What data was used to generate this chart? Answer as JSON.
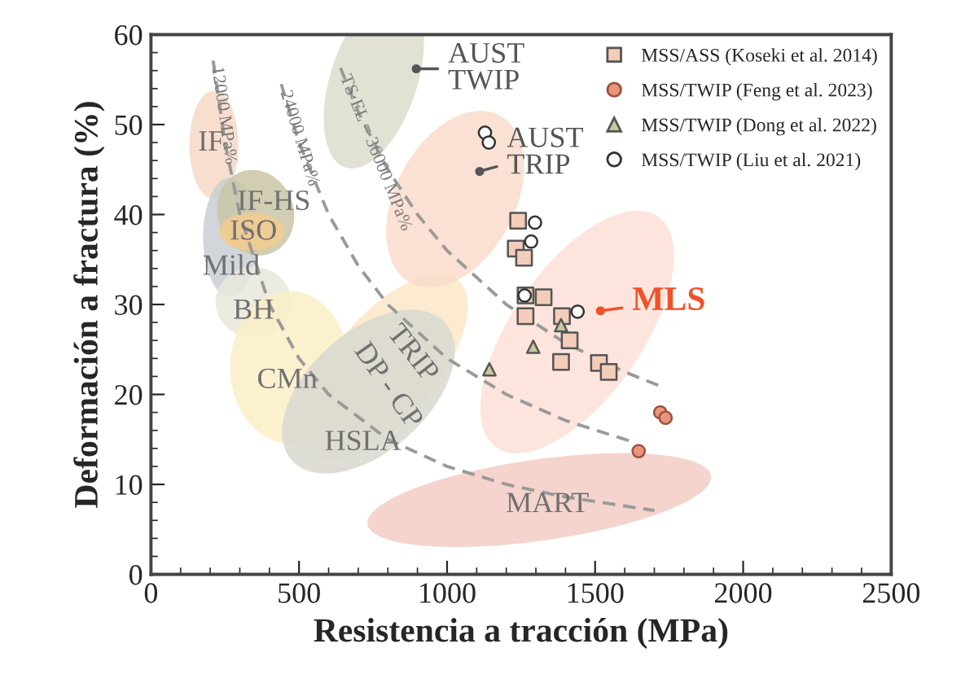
{
  "chart_data": {
    "type": "scatter",
    "xlabel": "Resistencia a tracción (MPa)",
    "ylabel": "Deformación a fractura (%)",
    "xlim": [
      0,
      2500
    ],
    "ylim": [
      0,
      60
    ],
    "xticks": [
      0,
      500,
      1000,
      1500,
      2000,
      2500
    ],
    "yticks": [
      0,
      10,
      20,
      30,
      40,
      50,
      60
    ],
    "grid": false,
    "legend": "top right",
    "series": [
      {
        "name": "MSS/ASS (Koseki et al. 2014)",
        "marker": "square",
        "color": "#f3cdb9",
        "x": [
          1240,
          1232,
          1260,
          1265,
          1326,
          1265,
          1388,
          1414,
          1385,
          1513,
          1546
        ],
        "values": [
          39.3,
          36.2,
          35.2,
          31.0,
          30.8,
          28.7,
          28.7,
          26.0,
          23.6,
          23.5,
          22.5
        ]
      },
      {
        "name": "MSS/TWIP (Feng et al. 2023)",
        "marker": "circle",
        "color": "#e8957a",
        "x": [
          1720,
          1738,
          1647
        ],
        "values": [
          18.0,
          17.4,
          13.7
        ]
      },
      {
        "name": "MSS/TWIP (Dong et al. 2022)",
        "marker": "triangle",
        "color": "#c8c8a0",
        "x": [
          1385,
          1291,
          1143
        ],
        "values": [
          27.7,
          25.3,
          22.8
        ]
      },
      {
        "name": "MSS/TWIP (Liu et al. 2021)",
        "marker": "circle",
        "color": "#ffffff",
        "x": [
          1128,
          1141,
          1297,
          1284,
          1262,
          1441
        ],
        "values": [
          49.1,
          48.0,
          39.1,
          37.0,
          31.0,
          29.2
        ]
      },
      {
        "name": "12000 MPa%",
        "type": "line",
        "line_style": "dashed",
        "marker": "none",
        "color": "#9a9a9a",
        "x": [
          210,
          250,
          300,
          400,
          500,
          600,
          800,
          1000,
          1200,
          1400,
          1700
        ],
        "values": [
          57.1,
          48.0,
          40.0,
          30.0,
          24.0,
          20.0,
          15.0,
          12.0,
          10.0,
          8.6,
          7.1
        ]
      },
      {
        "name": "24000 MPa%",
        "type": "line",
        "line_style": "dashed",
        "marker": "none",
        "color": "#9a9a9a",
        "x": [
          440,
          500,
          600,
          700,
          800,
          1000,
          1200,
          1400,
          1630
        ],
        "values": [
          54.5,
          48.0,
          40.0,
          34.3,
          30.0,
          24.0,
          20.0,
          17.1,
          14.7
        ]
      },
      {
        "name": "TS·EL = 36000 MPa%",
        "type": "line",
        "line_style": "dashed",
        "marker": "none",
        "color": "#9a9a9a",
        "x": [
          640,
          700,
          800,
          900,
          1000,
          1200,
          1400,
          1600,
          1730
        ],
        "values": [
          56.3,
          51.4,
          45.0,
          40.0,
          36.0,
          30.0,
          25.7,
          22.5,
          20.8
        ]
      }
    ],
    "annotations": [
      "IF",
      "IF-HS",
      "ISO",
      "Mild",
      "BH",
      "CMn",
      "TRIP",
      "DP - CP",
      "HSLA",
      "MART",
      {
        "text": "AUST\nTWIP",
        "x": 896,
        "y": 56.2
      },
      {
        "text": "AUST\nTRIP",
        "x": 1110,
        "y": 44.8
      },
      {
        "text": "MLS",
        "x": 1518,
        "y": 29.3
      }
    ]
  }
}
